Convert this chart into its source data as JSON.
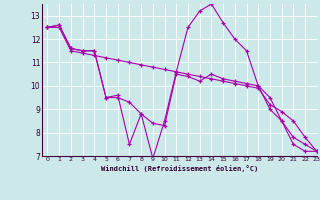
{
  "xlabel": "Windchill (Refroidissement éolien,°C)",
  "background_color": "#cce8e8",
  "line_color": "#aa00aa",
  "grid_color": "#ffffff",
  "xlim": [
    -0.5,
    23
  ],
  "ylim": [
    7,
    13.5
  ],
  "yticks": [
    7,
    8,
    9,
    10,
    11,
    12,
    13
  ],
  "xticks": [
    0,
    1,
    2,
    3,
    4,
    5,
    6,
    7,
    8,
    9,
    10,
    11,
    12,
    13,
    14,
    15,
    16,
    17,
    18,
    19,
    20,
    21,
    22,
    23
  ],
  "series": [
    [
      12.5,
      12.6,
      11.6,
      11.5,
      11.5,
      9.5,
      9.6,
      7.5,
      8.8,
      6.9,
      8.5,
      10.6,
      12.5,
      13.2,
      13.5,
      12.7,
      12.0,
      11.5,
      10.0,
      9.0,
      8.5,
      7.5,
      7.2,
      7.2
    ],
    [
      12.5,
      12.6,
      11.6,
      11.5,
      11.5,
      9.5,
      9.5,
      9.3,
      8.8,
      8.4,
      8.3,
      10.5,
      10.4,
      10.2,
      10.5,
      10.3,
      10.2,
      10.1,
      10.0,
      9.5,
      8.5,
      7.8,
      7.5,
      7.2
    ],
    [
      12.5,
      12.5,
      11.5,
      11.4,
      11.3,
      11.2,
      11.1,
      11.0,
      10.9,
      10.8,
      10.7,
      10.6,
      10.5,
      10.4,
      10.3,
      10.2,
      10.1,
      10.0,
      9.9,
      9.2,
      8.9,
      8.5,
      7.8,
      7.2
    ]
  ]
}
